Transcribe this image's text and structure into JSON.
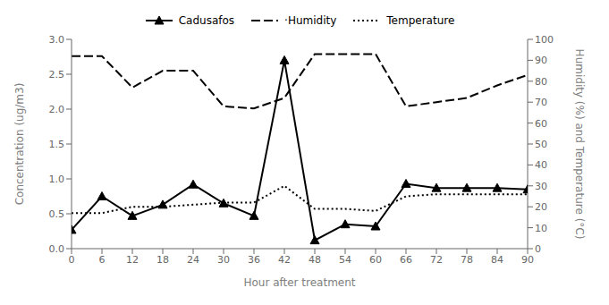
{
  "chart_data": {
    "type": "line",
    "x": [
      0,
      6,
      12,
      18,
      24,
      30,
      36,
      42,
      48,
      54,
      60,
      66,
      72,
      78,
      84,
      90
    ],
    "series": [
      {
        "name": "Cadusafos",
        "color": "black",
        "marker": "triangle",
        "line_style": "solid",
        "values": [
          0.27,
          0.75,
          0.47,
          0.63,
          0.92,
          0.65,
          0.47,
          2.7,
          0.12,
          0.35,
          0.32,
          0.93,
          0.87,
          0.87,
          0.87,
          0.85
        ]
      },
      {
        "name": "·Humidity",
        "color": "black",
        "marker": "none",
        "line_style": "dashed",
        "axis": "y2",
        "values": [
          92,
          92,
          77,
          85,
          85,
          68,
          67,
          72,
          93,
          93,
          93,
          68,
          70,
          72,
          78,
          83
        ]
      },
      {
        "name": "Temperature",
        "color": "black",
        "marker": "none",
        "line_style": "dotted",
        "axis": "y2",
        "values": [
          17,
          17,
          20,
          20,
          21,
          22,
          22,
          30,
          19,
          19,
          18,
          25,
          26,
          26,
          26,
          26
        ]
      }
    ],
    "xlabel": "Hour after treatment",
    "ylabel": "Concentration (ug/m3)",
    "y2label": "Humidity (%) and Temperature (°C)",
    "xlim": [
      0,
      90
    ],
    "xticks": [
      0,
      6,
      12,
      18,
      24,
      30,
      36,
      42,
      48,
      54,
      60,
      66,
      72,
      78,
      84,
      90
    ],
    "ylim": [
      0,
      3
    ],
    "yticks": [
      {
        "value": 0,
        "label": "0.0"
      },
      0.5,
      {
        "value": 1,
        "label": "1.0"
      },
      1.5,
      {
        "value": 2,
        "label": "2.0"
      },
      2.5,
      {
        "value": 3,
        "label": "3.0"
      }
    ],
    "y2lim": [
      0,
      100
    ],
    "y2ticks": [
      0,
      10,
      20,
      30,
      40,
      50,
      60,
      70,
      80,
      90,
      100
    ],
    "grid": false,
    "legend": "top"
  }
}
